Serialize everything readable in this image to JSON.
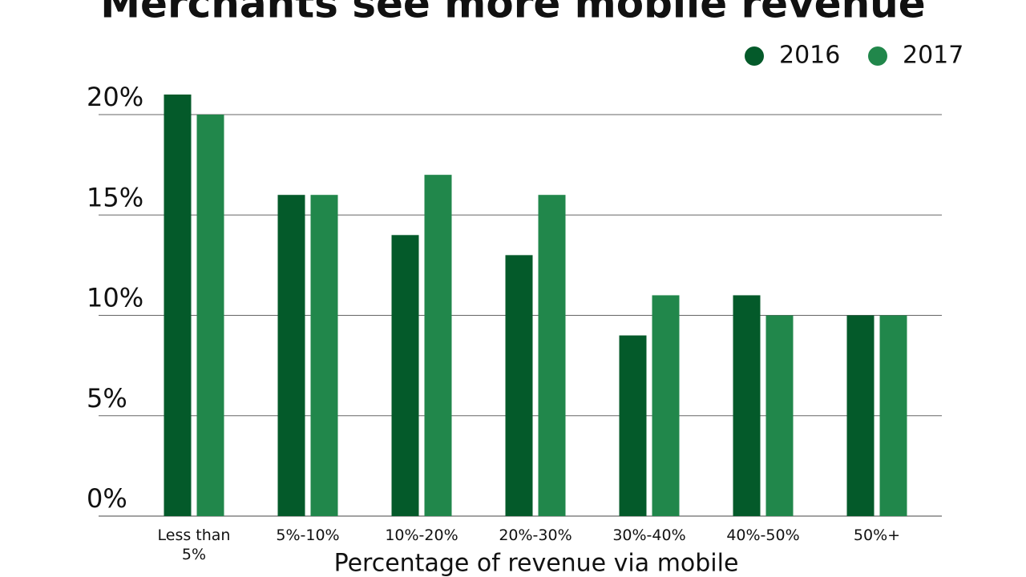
{
  "chart_data": {
    "type": "bar",
    "title": "Merchants see more mobile revenue",
    "x_label": "Percentage of revenue via mobile",
    "categories": [
      "Less than 5%",
      "5%-10%",
      "10%-20%",
      "20%-30%",
      "30%-40%",
      "40%-50%",
      "50%+"
    ],
    "series": [
      {
        "name": "2016",
        "color": "#045a2a",
        "values": [
          21,
          16,
          14,
          13,
          9,
          11,
          10
        ]
      },
      {
        "name": "2017",
        "color": "#21874b",
        "values": [
          20,
          16,
          17,
          16,
          11,
          10,
          10
        ]
      }
    ],
    "ylim": [
      0,
      20
    ],
    "yticks": [
      {
        "value": 0,
        "label": "0%"
      },
      {
        "value": 5,
        "label": "5%"
      },
      {
        "value": 10,
        "label": "10%"
      },
      {
        "value": 15,
        "label": "15%"
      },
      {
        "value": 20,
        "label": "20%"
      }
    ],
    "grid": true,
    "legend": "top-right"
  }
}
